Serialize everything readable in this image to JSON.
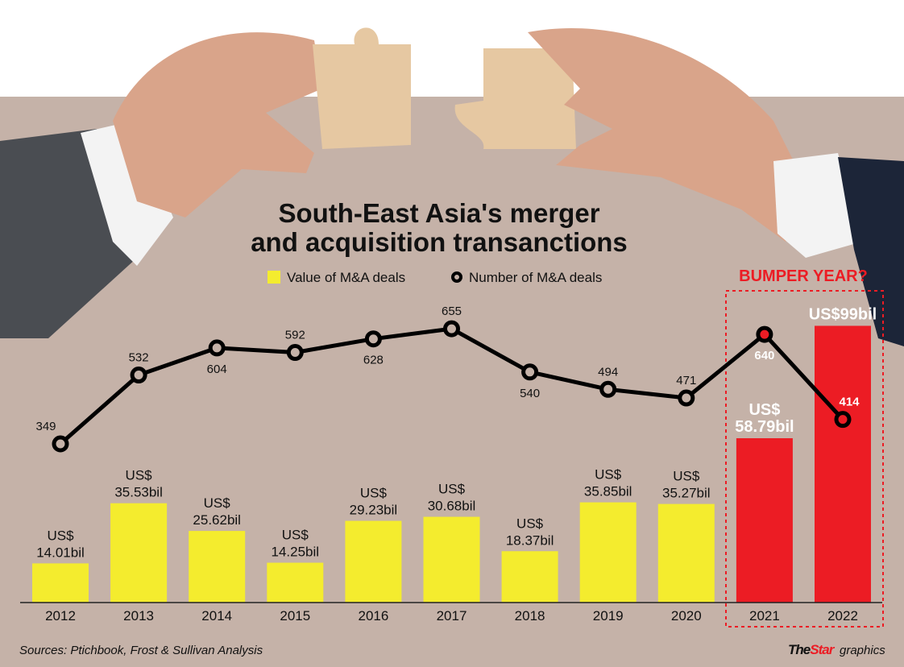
{
  "chart_data": {
    "type": "bar+line",
    "title": "South-East Asia's merger and acquisition transanctions",
    "categories": [
      "2012",
      "2013",
      "2014",
      "2015",
      "2016",
      "2017",
      "2018",
      "2019",
      "2020",
      "2021",
      "2022"
    ],
    "series": [
      {
        "name": "Value of M&A deals",
        "type": "bar",
        "unit": "US$ bil",
        "values": [
          14.01,
          35.53,
          25.62,
          14.25,
          29.23,
          30.68,
          18.37,
          35.85,
          35.27,
          58.79,
          99
        ],
        "labels": [
          [
            "US$",
            "14.01bil"
          ],
          [
            "US$",
            "35.53bil"
          ],
          [
            "US$",
            "25.62bil"
          ],
          [
            "US$",
            "14.25bil"
          ],
          [
            "US$",
            "29.23bil"
          ],
          [
            "US$",
            "30.68bil"
          ],
          [
            "US$",
            "18.37bil"
          ],
          [
            "US$",
            "35.85bil"
          ],
          [
            "US$",
            "35.27bil"
          ],
          [
            "US$",
            "58.79bil"
          ],
          [
            "US$99bil"
          ]
        ]
      },
      {
        "name": "Number of M&A deals",
        "type": "line",
        "values": [
          349,
          532,
          604,
          592,
          628,
          655,
          540,
          494,
          471,
          640,
          414
        ]
      }
    ],
    "highlight": {
      "label": "BUMPER YEAR?",
      "categories": [
        "2021",
        "2022"
      ]
    },
    "colors": {
      "bar": "#f4ec2e",
      "highlight_bar": "#ec1c24",
      "line": "#000000",
      "background": "#c5b2a8"
    },
    "legend_placement": "top",
    "grid": false
  },
  "source": "Sources: Ptichbook, Frost & Sullivan Analysis",
  "credit": {
    "brand": "TheStar",
    "suffix": "graphics"
  }
}
